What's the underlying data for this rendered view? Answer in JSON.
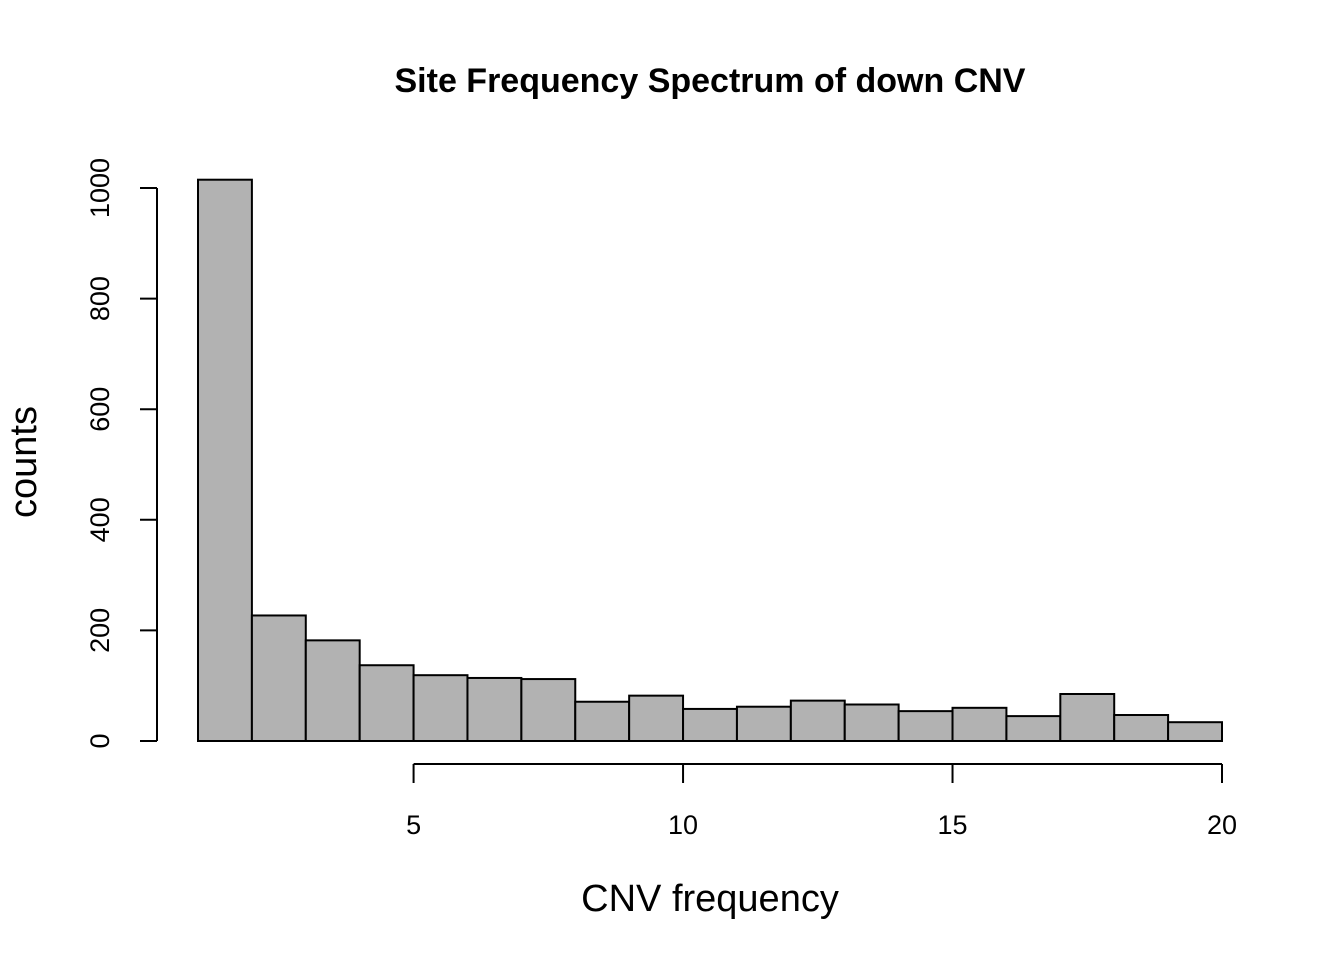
{
  "chart_data": {
    "type": "bar",
    "title": "Site Frequency Spectrum of down CNV",
    "xlabel": "CNV frequency",
    "ylabel": "counts",
    "bins": [
      {
        "start": 1,
        "end": 2,
        "value": 1015
      },
      {
        "start": 2,
        "end": 3,
        "value": 227
      },
      {
        "start": 3,
        "end": 4,
        "value": 182
      },
      {
        "start": 4,
        "end": 5,
        "value": 137
      },
      {
        "start": 5,
        "end": 6,
        "value": 119
      },
      {
        "start": 6,
        "end": 7,
        "value": 114
      },
      {
        "start": 7,
        "end": 8,
        "value": 112
      },
      {
        "start": 8,
        "end": 9,
        "value": 71
      },
      {
        "start": 9,
        "end": 10,
        "value": 82
      },
      {
        "start": 10,
        "end": 11,
        "value": 58
      },
      {
        "start": 11,
        "end": 12,
        "value": 62
      },
      {
        "start": 12,
        "end": 13,
        "value": 73
      },
      {
        "start": 13,
        "end": 14,
        "value": 66
      },
      {
        "start": 14,
        "end": 15,
        "value": 54
      },
      {
        "start": 15,
        "end": 16,
        "value": 60
      },
      {
        "start": 16,
        "end": 17,
        "value": 45
      },
      {
        "start": 17,
        "end": 18,
        "value": 85
      },
      {
        "start": 18,
        "end": 19,
        "value": 47
      },
      {
        "start": 19,
        "end": 20,
        "value": 34
      }
    ],
    "xlim": [
      1,
      20
    ],
    "ylim": [
      0,
      1040
    ],
    "xticks": [
      5,
      10,
      15,
      20
    ],
    "yticks": [
      0,
      200,
      400,
      600,
      800,
      1000
    ],
    "bar_color": "#b2b2b2",
    "grid": false,
    "legend": "none"
  }
}
